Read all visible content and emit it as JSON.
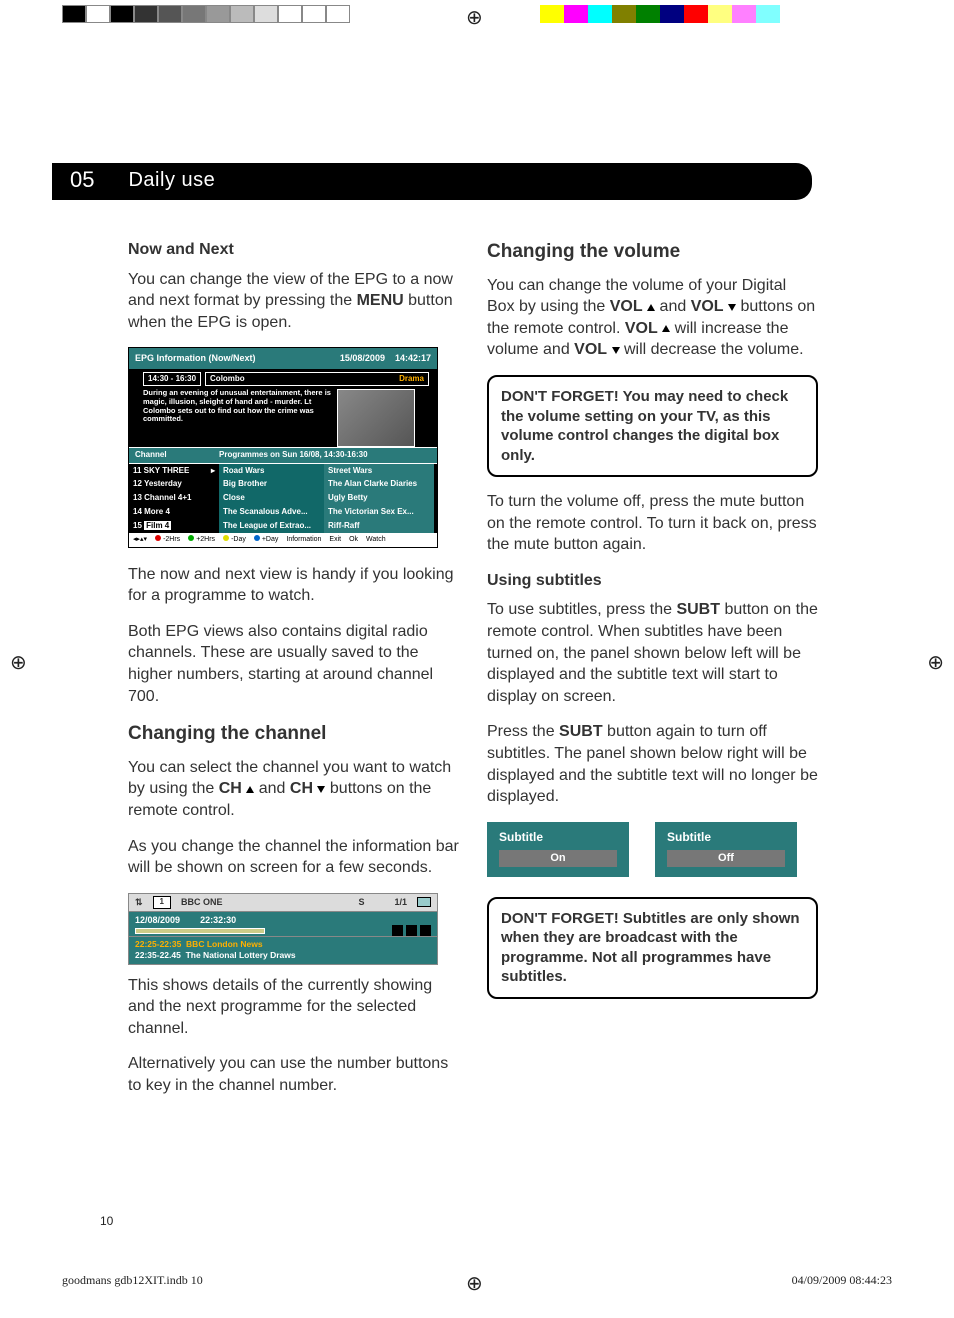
{
  "colorbars": {
    "left": [
      "#000000",
      "#ffffff",
      "#000000",
      "#333333",
      "#555555",
      "#777777",
      "#999999",
      "#bbbbbb",
      "#dddddd",
      "#ffffff",
      "#ffffff",
      "#ffffff"
    ],
    "right": [
      "#ffff00",
      "#ff00ff",
      "#00ffff",
      "#808000",
      "#008000",
      "#000080",
      "#ff0000",
      "#ffff80",
      "#ff80ff",
      "#80ffff"
    ]
  },
  "header": {
    "num": "05",
    "title": "Daily use"
  },
  "left": {
    "h_now": "Now and Next",
    "p1a": "You can change the view of the EPG to a now and next format by pressing the ",
    "p1b": "MENU",
    "p1c": " button when the EPG is open.",
    "p2": "The now and next view is handy if you looking for a programme to watch.",
    "p3": "Both EPG views also contains digital radio channels. These are usually saved to the higher numbers, starting at around channel 700.",
    "h_chan": "Changing the channel",
    "p4a": "You can select the channel you want to watch by using the ",
    "p4b": "CH",
    "p4c": " and ",
    "p4d": "CH",
    "p4e": " buttons on the remote control.",
    "p5": "As you change the channel the information bar will be shown on screen for a few seconds.",
    "p6": "This shows details of the currently showing and the next programme for the selected channel.",
    "p7": "Alternatively you can use the number buttons to key in the channel number."
  },
  "epg": {
    "title": "EPG Information (Now/Next)",
    "date": "15/08/2009",
    "time": "14:42:17",
    "slot": "14:30 - 16:30",
    "prog": "Colombo",
    "genre": "Drama",
    "desc": "During an evening of unusual entertainment, there is magic, illusion, sleight of hand and - murder. Lt Colombo sets out to find out how the crime was committed.",
    "hdr_ch": "Channel",
    "hdr_prog": "Programmes on Sun 16/08,  14:30-16:30",
    "rows": [
      {
        "n": "11",
        "ch": "SKY THREE",
        "p1": "Road Wars",
        "p2": "Street Wars"
      },
      {
        "n": "12",
        "ch": "Yesterday",
        "p1": "Big Brother",
        "p2": "The Alan Clarke Diaries"
      },
      {
        "n": "13",
        "ch": "Channel 4+1",
        "p1": "Close",
        "p2": "Ugly Betty"
      },
      {
        "n": "14",
        "ch": "More 4",
        "p1": "The Scanalous Adve...",
        "p2": "The Victorian Sex Ex..."
      },
      {
        "n": "15",
        "ch": "Film 4",
        "p1": "The League of Extrao...",
        "p2": "Riff-Raff"
      }
    ],
    "legend": {
      "l1": "-2Hrs",
      "l2": "+2Hrs",
      "l3": "-Day",
      "l4": "+Day",
      "l5": "Information",
      "l6": "Exit",
      "l7": "Ok",
      "l8": "Watch"
    }
  },
  "infobar": {
    "chnum": "1",
    "chname": "BBC ONE",
    "s": "S",
    "pg": "1/1",
    "date": "12/08/2009",
    "time": "22:32:30",
    "r1t": "22:25-22:35",
    "r1p": "BBC London News",
    "r2t": "22:35-22.45",
    "r2p": "The National Lottery Draws"
  },
  "right": {
    "h_vol": "Changing the volume",
    "pv1a": "You can change the volume of your Digital Box by using the ",
    "pv1b": "VOL",
    "pv1c": " and ",
    "pv1d": "VOL",
    "pv1e": " buttons on the remote control. ",
    "pv1f": "VOL",
    "pv1g": " will increase the volume and ",
    "pv1h": "VOL",
    "pv1i": " will decrease the volume.",
    "call1": "DON'T FORGET! You may need to check the volume setting on your TV, as this volume control changes the digital box only.",
    "pv2": "To turn the volume off, press the mute button on the remote control. To turn it back on, press the mute button again.",
    "h_sub": "Using subtitles",
    "ps1a": "To use subtitles, press the ",
    "ps1b": "SUBT",
    "ps1c": " button on the remote control. When subtitles have been turned on, the panel shown below left will be displayed and the subtitle text will start to display on screen.",
    "ps2a": "Press the  ",
    "ps2b": "SUBT",
    "ps2c": " button again to turn off subtitles. The panel shown below right will be displayed and the subtitle text will no longer be displayed.",
    "sub_label": "Subtitle",
    "sub_on": "On",
    "sub_off": "Off",
    "call2": "DON'T FORGET! Subtitles are only shown when they are broadcast with the programme. Not all programmes have subtitles."
  },
  "footer": {
    "page": "10",
    "file": "goodmans gdb12XIT.indb   10",
    "stamp": "04/09/2009   08:44:23"
  }
}
